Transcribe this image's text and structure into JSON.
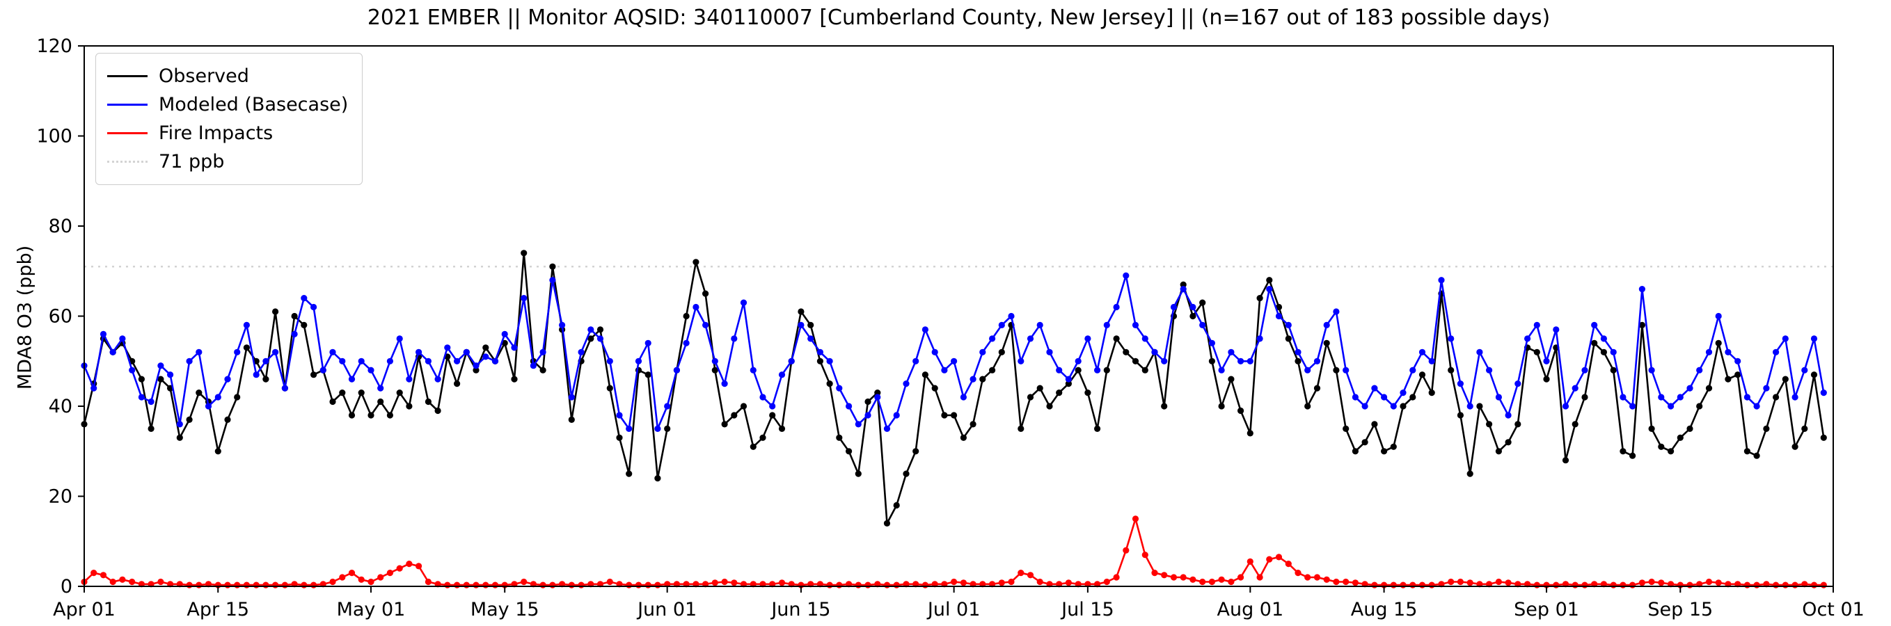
{
  "figure": {
    "title": "2021 EMBER || Monitor AQSID: 340110007 [Cumberland County, New Jersey] || (n=167 out of 183 possible days)",
    "ylabel": "MDA8 O3 (ppb)"
  },
  "legend": {
    "items": [
      {
        "label": "Observed",
        "color": "#000000",
        "style": "solid"
      },
      {
        "label": "Modeled (Basecase)",
        "color": "#0000ff",
        "style": "solid"
      },
      {
        "label": "Fire Impacts",
        "color": "#ff0000",
        "style": "solid"
      },
      {
        "label": "71 ppb",
        "color": "#d3d3d3",
        "style": "dotted"
      }
    ]
  },
  "chart_data": {
    "type": "line",
    "title": "2021 EMBER || Monitor AQSID: 340110007 [Cumberland County, New Jersey] || (n=167 out of 183 possible days)",
    "xlabel": "",
    "ylabel": "MDA8 O3 (ppb)",
    "ylim": [
      0,
      120
    ],
    "yticks": [
      0,
      20,
      40,
      60,
      80,
      100,
      120
    ],
    "x_unit": "days since Apr 01",
    "x_range": [
      0,
      183
    ],
    "xticks": [
      {
        "day": 0,
        "label": "Apr 01"
      },
      {
        "day": 14,
        "label": "Apr 15"
      },
      {
        "day": 30,
        "label": "May 01"
      },
      {
        "day": 44,
        "label": "May 15"
      },
      {
        "day": 61,
        "label": "Jun 01"
      },
      {
        "day": 75,
        "label": "Jun 15"
      },
      {
        "day": 91,
        "label": "Jul 01"
      },
      {
        "day": 105,
        "label": "Jul 15"
      },
      {
        "day": 122,
        "label": "Aug 01"
      },
      {
        "day": 136,
        "label": "Aug 15"
      },
      {
        "day": 153,
        "label": "Sep 01"
      },
      {
        "day": 167,
        "label": "Sep 15"
      },
      {
        "day": 183,
        "label": "Oct 01"
      }
    ],
    "threshold": {
      "value": 71,
      "label": "71 ppb",
      "color": "#d3d3d3",
      "style": "dotted"
    },
    "legend_position": "upper left",
    "grid": false,
    "series": [
      {
        "name": "Observed",
        "color": "#000000",
        "marker": "circle",
        "values": [
          36,
          45,
          55,
          52,
          54,
          50,
          46,
          35,
          46,
          44,
          33,
          37,
          43,
          41,
          30,
          37,
          42,
          53,
          50,
          46,
          61,
          44,
          60,
          58,
          47,
          48,
          41,
          43,
          38,
          43,
          38,
          41,
          38,
          43,
          40,
          51,
          41,
          39,
          51,
          45,
          52,
          48,
          53,
          50,
          54,
          46,
          74,
          50,
          48,
          71,
          57,
          37,
          50,
          55,
          57,
          44,
          33,
          25,
          48,
          47,
          24,
          35,
          48,
          60,
          72,
          65,
          48,
          36,
          38,
          40,
          31,
          33,
          38,
          35,
          50,
          61,
          58,
          50,
          45,
          33,
          30,
          25,
          41,
          43,
          14,
          18,
          25,
          30,
          47,
          44,
          38,
          38,
          33,
          36,
          46,
          48,
          52,
          58,
          35,
          42,
          44,
          40,
          43,
          45,
          48,
          43,
          35,
          48,
          55,
          52,
          50,
          48,
          52,
          40,
          60,
          67,
          60,
          63,
          50,
          40,
          46,
          39,
          34,
          64,
          68,
          62,
          55,
          50,
          40,
          44,
          54,
          48,
          35,
          30,
          32,
          36,
          30,
          31,
          40,
          42,
          47,
          43,
          65,
          48,
          38,
          25,
          40,
          36,
          30,
          32,
          36,
          53,
          52,
          46,
          53,
          28,
          36,
          42,
          54,
          52,
          48,
          30,
          29,
          58,
          35,
          31,
          30,
          33,
          35,
          40,
          44,
          54,
          46,
          47,
          30,
          29,
          35,
          42,
          46,
          31,
          35,
          47,
          33
        ]
      },
      {
        "name": "Modeled (Basecase)",
        "color": "#0000ff",
        "marker": "circle",
        "values": [
          49,
          44,
          56,
          52,
          55,
          48,
          42,
          41,
          49,
          47,
          36,
          50,
          52,
          40,
          42,
          46,
          52,
          58,
          47,
          50,
          52,
          44,
          56,
          64,
          62,
          48,
          52,
          50,
          46,
          50,
          48,
          44,
          50,
          55,
          46,
          52,
          50,
          46,
          53,
          50,
          52,
          49,
          51,
          50,
          56,
          53,
          64,
          49,
          52,
          68,
          58,
          42,
          52,
          57,
          55,
          50,
          38,
          35,
          50,
          54,
          35,
          40,
          48,
          54,
          62,
          58,
          50,
          45,
          55,
          63,
          48,
          42,
          40,
          47,
          50,
          58,
          55,
          52,
          50,
          44,
          40,
          36,
          38,
          42,
          35,
          38,
          45,
          50,
          57,
          52,
          48,
          50,
          42,
          46,
          52,
          55,
          58,
          60,
          50,
          55,
          58,
          52,
          48,
          46,
          50,
          55,
          48,
          58,
          62,
          69,
          58,
          55,
          52,
          50,
          62,
          66,
          62,
          58,
          54,
          48,
          52,
          50,
          50,
          55,
          66,
          60,
          58,
          52,
          48,
          50,
          58,
          61,
          48,
          42,
          40,
          44,
          42,
          40,
          43,
          48,
          52,
          50,
          68,
          55,
          45,
          40,
          52,
          48,
          42,
          38,
          45,
          55,
          58,
          50,
          57,
          40,
          44,
          48,
          58,
          55,
          52,
          42,
          40,
          66,
          48,
          42,
          40,
          42,
          44,
          48,
          52,
          60,
          52,
          50,
          42,
          40,
          44,
          52,
          55,
          42,
          48,
          55,
          43
        ]
      },
      {
        "name": "Fire Impacts",
        "color": "#ff0000",
        "marker": "circle",
        "values": [
          1,
          3,
          2.5,
          1,
          1.5,
          1,
          0.5,
          0.5,
          1,
          0.5,
          0.5,
          0.3,
          0.3,
          0.5,
          0.3,
          0.3,
          0.3,
          0.3,
          0.3,
          0.3,
          0.3,
          0.3,
          0.5,
          0.3,
          0.3,
          0.5,
          1,
          2,
          3,
          1.5,
          1,
          2,
          3,
          4,
          5,
          4.5,
          1,
          0.5,
          0.3,
          0.3,
          0.3,
          0.3,
          0.3,
          0.3,
          0.3,
          0.5,
          1,
          0.5,
          0.3,
          0.3,
          0.5,
          0.3,
          0.3,
          0.5,
          0.5,
          1,
          0.5,
          0.3,
          0.3,
          0.3,
          0.3,
          0.5,
          0.5,
          0.5,
          0.5,
          0.5,
          0.8,
          1,
          0.8,
          0.5,
          0.5,
          0.5,
          0.5,
          0.8,
          0.5,
          0.3,
          0.5,
          0.5,
          0.3,
          0.3,
          0.5,
          0.3,
          0.3,
          0.5,
          0.3,
          0.3,
          0.5,
          0.5,
          0.3,
          0.5,
          0.5,
          1,
          0.8,
          0.5,
          0.5,
          0.5,
          0.8,
          1,
          3,
          2.5,
          1,
          0.5,
          0.5,
          0.8,
          0.5,
          0.5,
          0.5,
          1,
          2,
          8,
          15,
          7,
          3,
          2.5,
          2,
          2,
          1.5,
          1,
          1,
          1.5,
          1,
          2,
          5.5,
          2,
          6,
          6.5,
          5,
          3,
          2,
          2,
          1.5,
          1,
          1,
          0.8,
          0.5,
          0.3,
          0.3,
          0.3,
          0.3,
          0.3,
          0.3,
          0.3,
          0.5,
          1,
          1,
          0.8,
          0.5,
          0.5,
          1,
          0.8,
          0.5,
          0.5,
          0.3,
          0.3,
          0.3,
          0.5,
          0.3,
          0.3,
          0.5,
          0.5,
          0.3,
          0.3,
          0.3,
          0.8,
          1,
          0.8,
          0.5,
          0.3,
          0.3,
          0.5,
          1,
          0.8,
          0.5,
          0.5,
          0.3,
          0.3,
          0.5,
          0.3,
          0.3,
          0.3,
          0.5,
          0.3,
          0.3
        ]
      }
    ]
  }
}
